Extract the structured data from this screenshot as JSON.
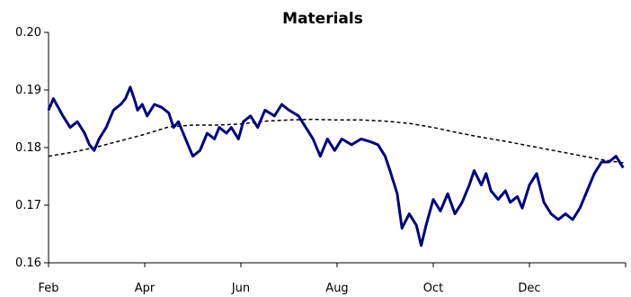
{
  "chart_data": {
    "type": "line",
    "title": "Materials",
    "xlabel": "",
    "ylabel": "",
    "x_ticks": [
      "Feb",
      "Apr",
      "Jun",
      "Aug",
      "Oct",
      "Dec"
    ],
    "y_ticks": [
      "0.16",
      "0.17",
      "0.18",
      "0.19",
      "0.20"
    ],
    "ylim": [
      0.16,
      0.2
    ],
    "x_domain_months": [
      0,
      12
    ],
    "grid": false,
    "legend": "none",
    "colors": {
      "series": "#000080",
      "trend": "#000000"
    },
    "series": [
      {
        "style": "solid",
        "x": [
          0,
          0.1,
          0.2,
          0.3,
          0.45,
          0.6,
          0.75,
          0.85,
          0.95,
          1.05,
          1.2,
          1.35,
          1.5,
          1.6,
          1.7,
          1.8,
          1.85,
          1.95,
          2.05,
          2.2,
          2.35,
          2.5,
          2.6,
          2.7,
          2.85,
          3.0,
          3.15,
          3.3,
          3.45,
          3.55,
          3.7,
          3.8,
          3.95,
          4.05,
          4.2,
          4.35,
          4.5,
          4.7,
          4.85,
          5.0,
          5.2,
          5.35,
          5.5,
          5.65,
          5.8,
          5.95,
          6.1,
          6.3,
          6.5,
          6.7,
          6.85,
          7.0,
          7.1,
          7.25,
          7.35,
          7.5,
          7.65,
          7.75,
          7.85,
          8.0,
          8.15,
          8.3,
          8.45,
          8.6,
          8.75,
          8.85,
          9.0,
          9.1,
          9.2,
          9.35,
          9.5,
          9.6,
          9.75,
          9.85,
          10.0,
          10.15,
          10.3,
          10.45,
          10.6,
          10.75,
          10.9,
          11.05,
          11.2,
          11.35,
          11.5,
          11.65,
          11.8,
          11.95
        ],
        "y": [
          0.1865,
          0.1885,
          0.187,
          0.1855,
          0.1835,
          0.1845,
          0.1825,
          0.1805,
          0.1795,
          0.1815,
          0.1835,
          0.1865,
          0.1875,
          0.1885,
          0.1905,
          0.188,
          0.1865,
          0.1875,
          0.1855,
          0.1875,
          0.187,
          0.186,
          0.1835,
          0.1845,
          0.1815,
          0.1785,
          0.1795,
          0.1825,
          0.1815,
          0.1835,
          0.1825,
          0.1835,
          0.1815,
          0.1845,
          0.1855,
          0.1835,
          0.1865,
          0.1855,
          0.1875,
          0.1865,
          0.1855,
          0.1835,
          0.1815,
          0.1785,
          0.1815,
          0.1795,
          0.1815,
          0.1805,
          0.1815,
          0.181,
          0.1805,
          0.1785,
          0.176,
          0.172,
          0.166,
          0.1685,
          0.1665,
          0.163,
          0.1665,
          0.171,
          0.169,
          0.172,
          0.1685,
          0.1705,
          0.1735,
          0.176,
          0.1735,
          0.1755,
          0.1725,
          0.171,
          0.1725,
          0.1705,
          0.1715,
          0.1695,
          0.1735,
          0.1755,
          0.1705,
          0.1685,
          0.1675,
          0.1685,
          0.1675,
          0.1695,
          0.1725,
          0.1755,
          0.1775,
          0.1775,
          0.1785,
          0.1765
        ]
      },
      {
        "style": "dashed",
        "x": [
          0,
          0.5,
          1.0,
          1.5,
          2.0,
          2.5,
          3.0,
          3.5,
          4.0,
          4.5,
          5.0,
          5.5,
          6.0,
          6.5,
          7.0,
          7.5,
          8.0,
          8.5,
          9.0,
          9.5,
          10.0,
          10.5,
          11.0,
          11.5,
          12.0
        ],
        "y": [
          0.1785,
          0.1792,
          0.1801,
          0.1812,
          0.1823,
          0.1836,
          0.1839,
          0.1839,
          0.1841,
          0.1846,
          0.1848,
          0.1849,
          0.1848,
          0.1848,
          0.1846,
          0.1842,
          0.1835,
          0.1826,
          0.1818,
          0.1811,
          0.1803,
          0.1795,
          0.1787,
          0.1779,
          0.1773
        ]
      }
    ]
  }
}
